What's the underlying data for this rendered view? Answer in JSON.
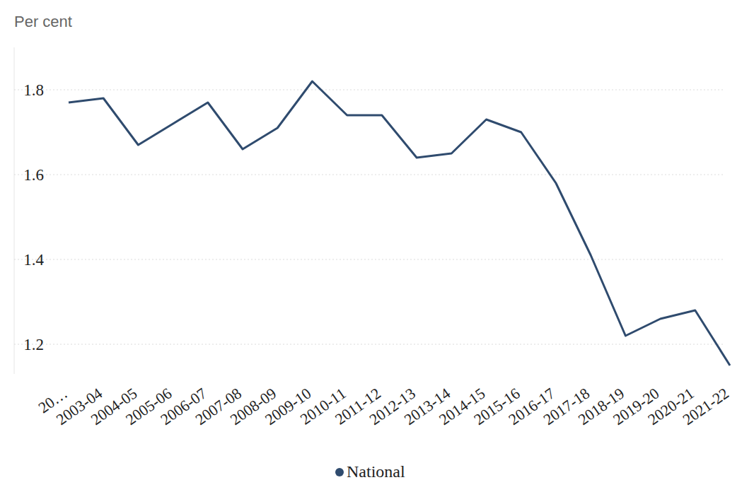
{
  "chart_data": {
    "type": "line",
    "y_label": "Per cent",
    "categories": [
      "20…",
      "2003-04",
      "2004-05",
      "2005-06",
      "2006-07",
      "2007-08",
      "2008-09",
      "2009-10",
      "2010-11",
      "2011-12",
      "2012-13",
      "2013-14",
      "2014-15",
      "2015-16",
      "2016-17",
      "2017-18",
      "2018-19",
      "2019-20",
      "2020-21",
      "2021-22"
    ],
    "series": [
      {
        "name": "National",
        "color": "#2f4b6e",
        "values": [
          1.77,
          1.78,
          1.67,
          1.72,
          1.77,
          1.66,
          1.71,
          1.82,
          1.74,
          1.74,
          1.64,
          1.65,
          1.73,
          1.7,
          1.58,
          1.41,
          1.22,
          1.26,
          1.28,
          1.15
        ]
      }
    ],
    "ylim": [
      1.13,
      1.9
    ],
    "yticks": [
      1.2,
      1.4,
      1.6,
      1.8
    ],
    "grid": true,
    "legend": "bottom"
  }
}
